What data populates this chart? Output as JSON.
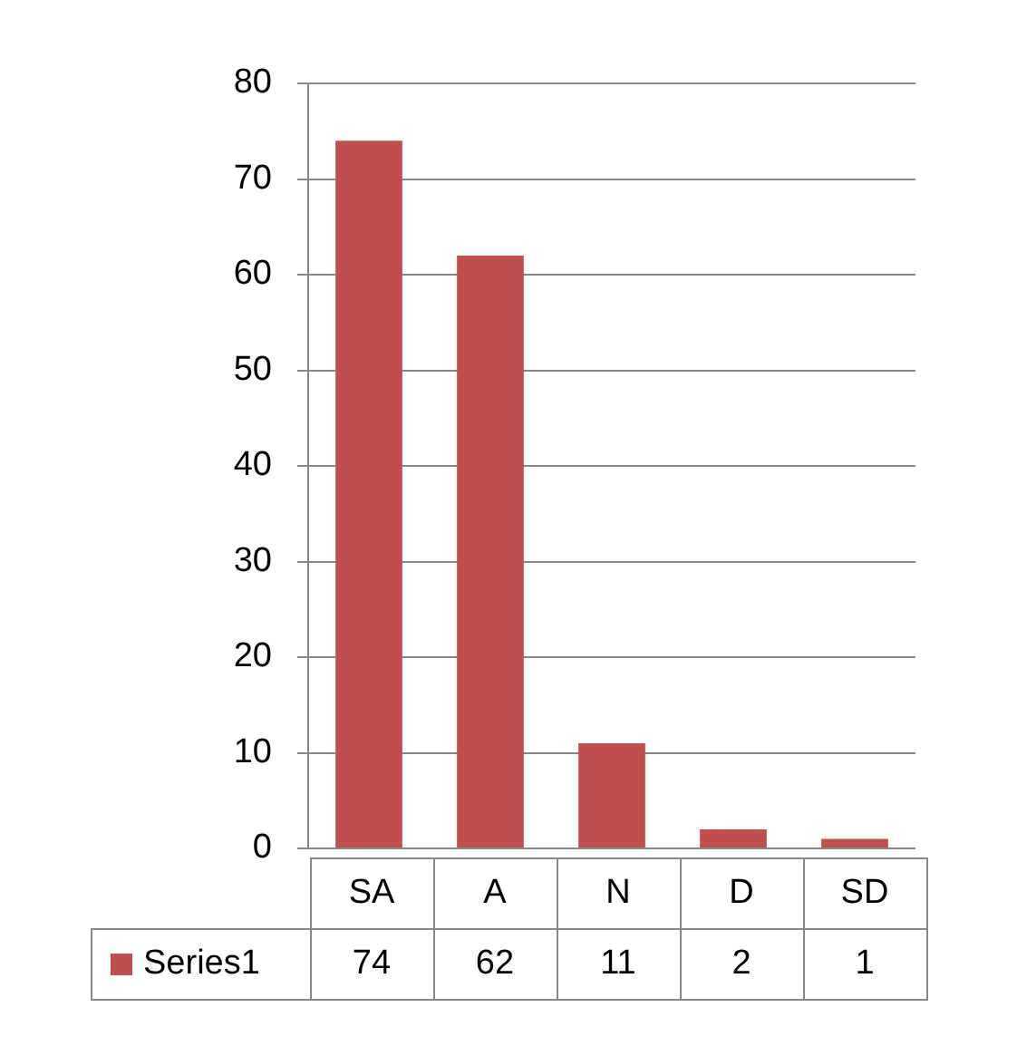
{
  "chart_data": {
    "type": "bar",
    "categories": [
      "SA",
      "A",
      "N",
      "D",
      "SD"
    ],
    "series": [
      {
        "name": "Series1",
        "color": "#c0504d",
        "values": [
          74,
          62,
          11,
          2,
          1
        ]
      }
    ],
    "ylim": [
      0,
      80
    ],
    "yticks": [
      0,
      10,
      20,
      30,
      40,
      50,
      60,
      70,
      80
    ],
    "grid": "y",
    "legend": "bottom",
    "data_labels": true
  }
}
